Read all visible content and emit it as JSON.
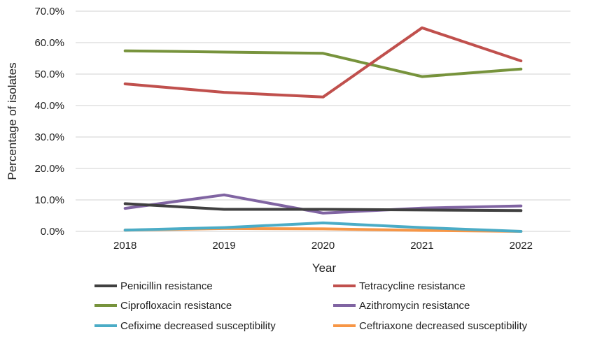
{
  "chart_data": {
    "type": "line",
    "title": "",
    "xlabel": "Year",
    "ylabel": "Percentage of isolates",
    "categories": [
      "2018",
      "2019",
      "2020",
      "2021",
      "2022"
    ],
    "ylim": [
      0,
      70
    ],
    "yticks": [
      0,
      10,
      20,
      30,
      40,
      50,
      60,
      70
    ],
    "ytick_labels": [
      "0.0%",
      "10.0%",
      "20.0%",
      "30.0%",
      "40.0%",
      "50.0%",
      "60.0%",
      "70.0%"
    ],
    "grid": true,
    "legend_position": "bottom",
    "series": [
      {
        "name": "Penicillin resistance",
        "color": "#404040",
        "values": [
          8.8,
          7.0,
          7.0,
          6.8,
          6.6
        ]
      },
      {
        "name": "Tetracycline resistance",
        "color": "#c0504d",
        "values": [
          46.9,
          44.2,
          42.7,
          64.7,
          54.2
        ]
      },
      {
        "name": "Ciprofloxacin resistance",
        "color": "#77933c",
        "values": [
          57.4,
          57.0,
          56.6,
          49.2,
          51.6
        ]
      },
      {
        "name": "Azithromycin resistance",
        "color": "#8064a2",
        "values": [
          7.3,
          11.6,
          5.8,
          7.4,
          8.1
        ]
      },
      {
        "name": "Cefixime decreased susceptibility",
        "color": "#4bacc6",
        "values": [
          0.4,
          1.2,
          2.7,
          1.2,
          0.0
        ]
      },
      {
        "name": "Ceftriaxone decreased susceptibility",
        "color": "#f79646",
        "values": [
          0.4,
          0.9,
          0.8,
          0.3,
          0.0
        ]
      }
    ]
  }
}
